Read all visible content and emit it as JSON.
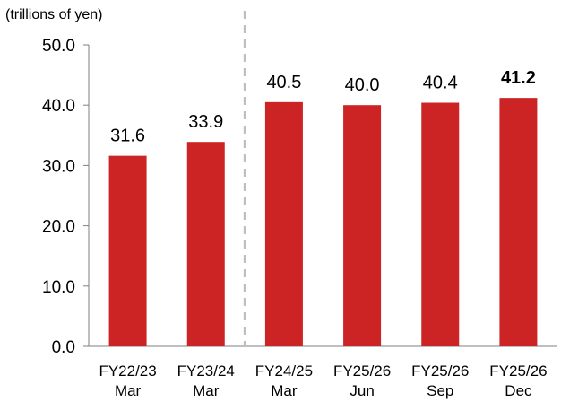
{
  "chart_data": {
    "type": "bar",
    "unit_label": "(trillions of yen)",
    "categories": [
      [
        "FY22/23",
        "Mar"
      ],
      [
        "FY23/24",
        "Mar"
      ],
      [
        "FY24/25",
        "Mar"
      ],
      [
        "FY25/26",
        "Jun"
      ],
      [
        "FY25/26",
        "Sep"
      ],
      [
        "FY25/26",
        "Dec"
      ]
    ],
    "values": [
      31.6,
      33.9,
      40.5,
      40.0,
      40.4,
      41.2
    ],
    "value_labels": [
      "31.6",
      "33.9",
      "40.5",
      "40.0",
      "40.4",
      "41.2"
    ],
    "highlight_index": 5,
    "ylim": [
      0,
      50
    ],
    "yticks": [
      0,
      10,
      20,
      30,
      40,
      50
    ],
    "ytick_labels": [
      "0.0",
      "10.0",
      "20.0",
      "30.0",
      "40.0",
      "50.0"
    ],
    "divider_after_index": 1,
    "bar_color": "#cc2424",
    "divider_color": "#bfbfbf",
    "grid": false,
    "legend": "none"
  }
}
